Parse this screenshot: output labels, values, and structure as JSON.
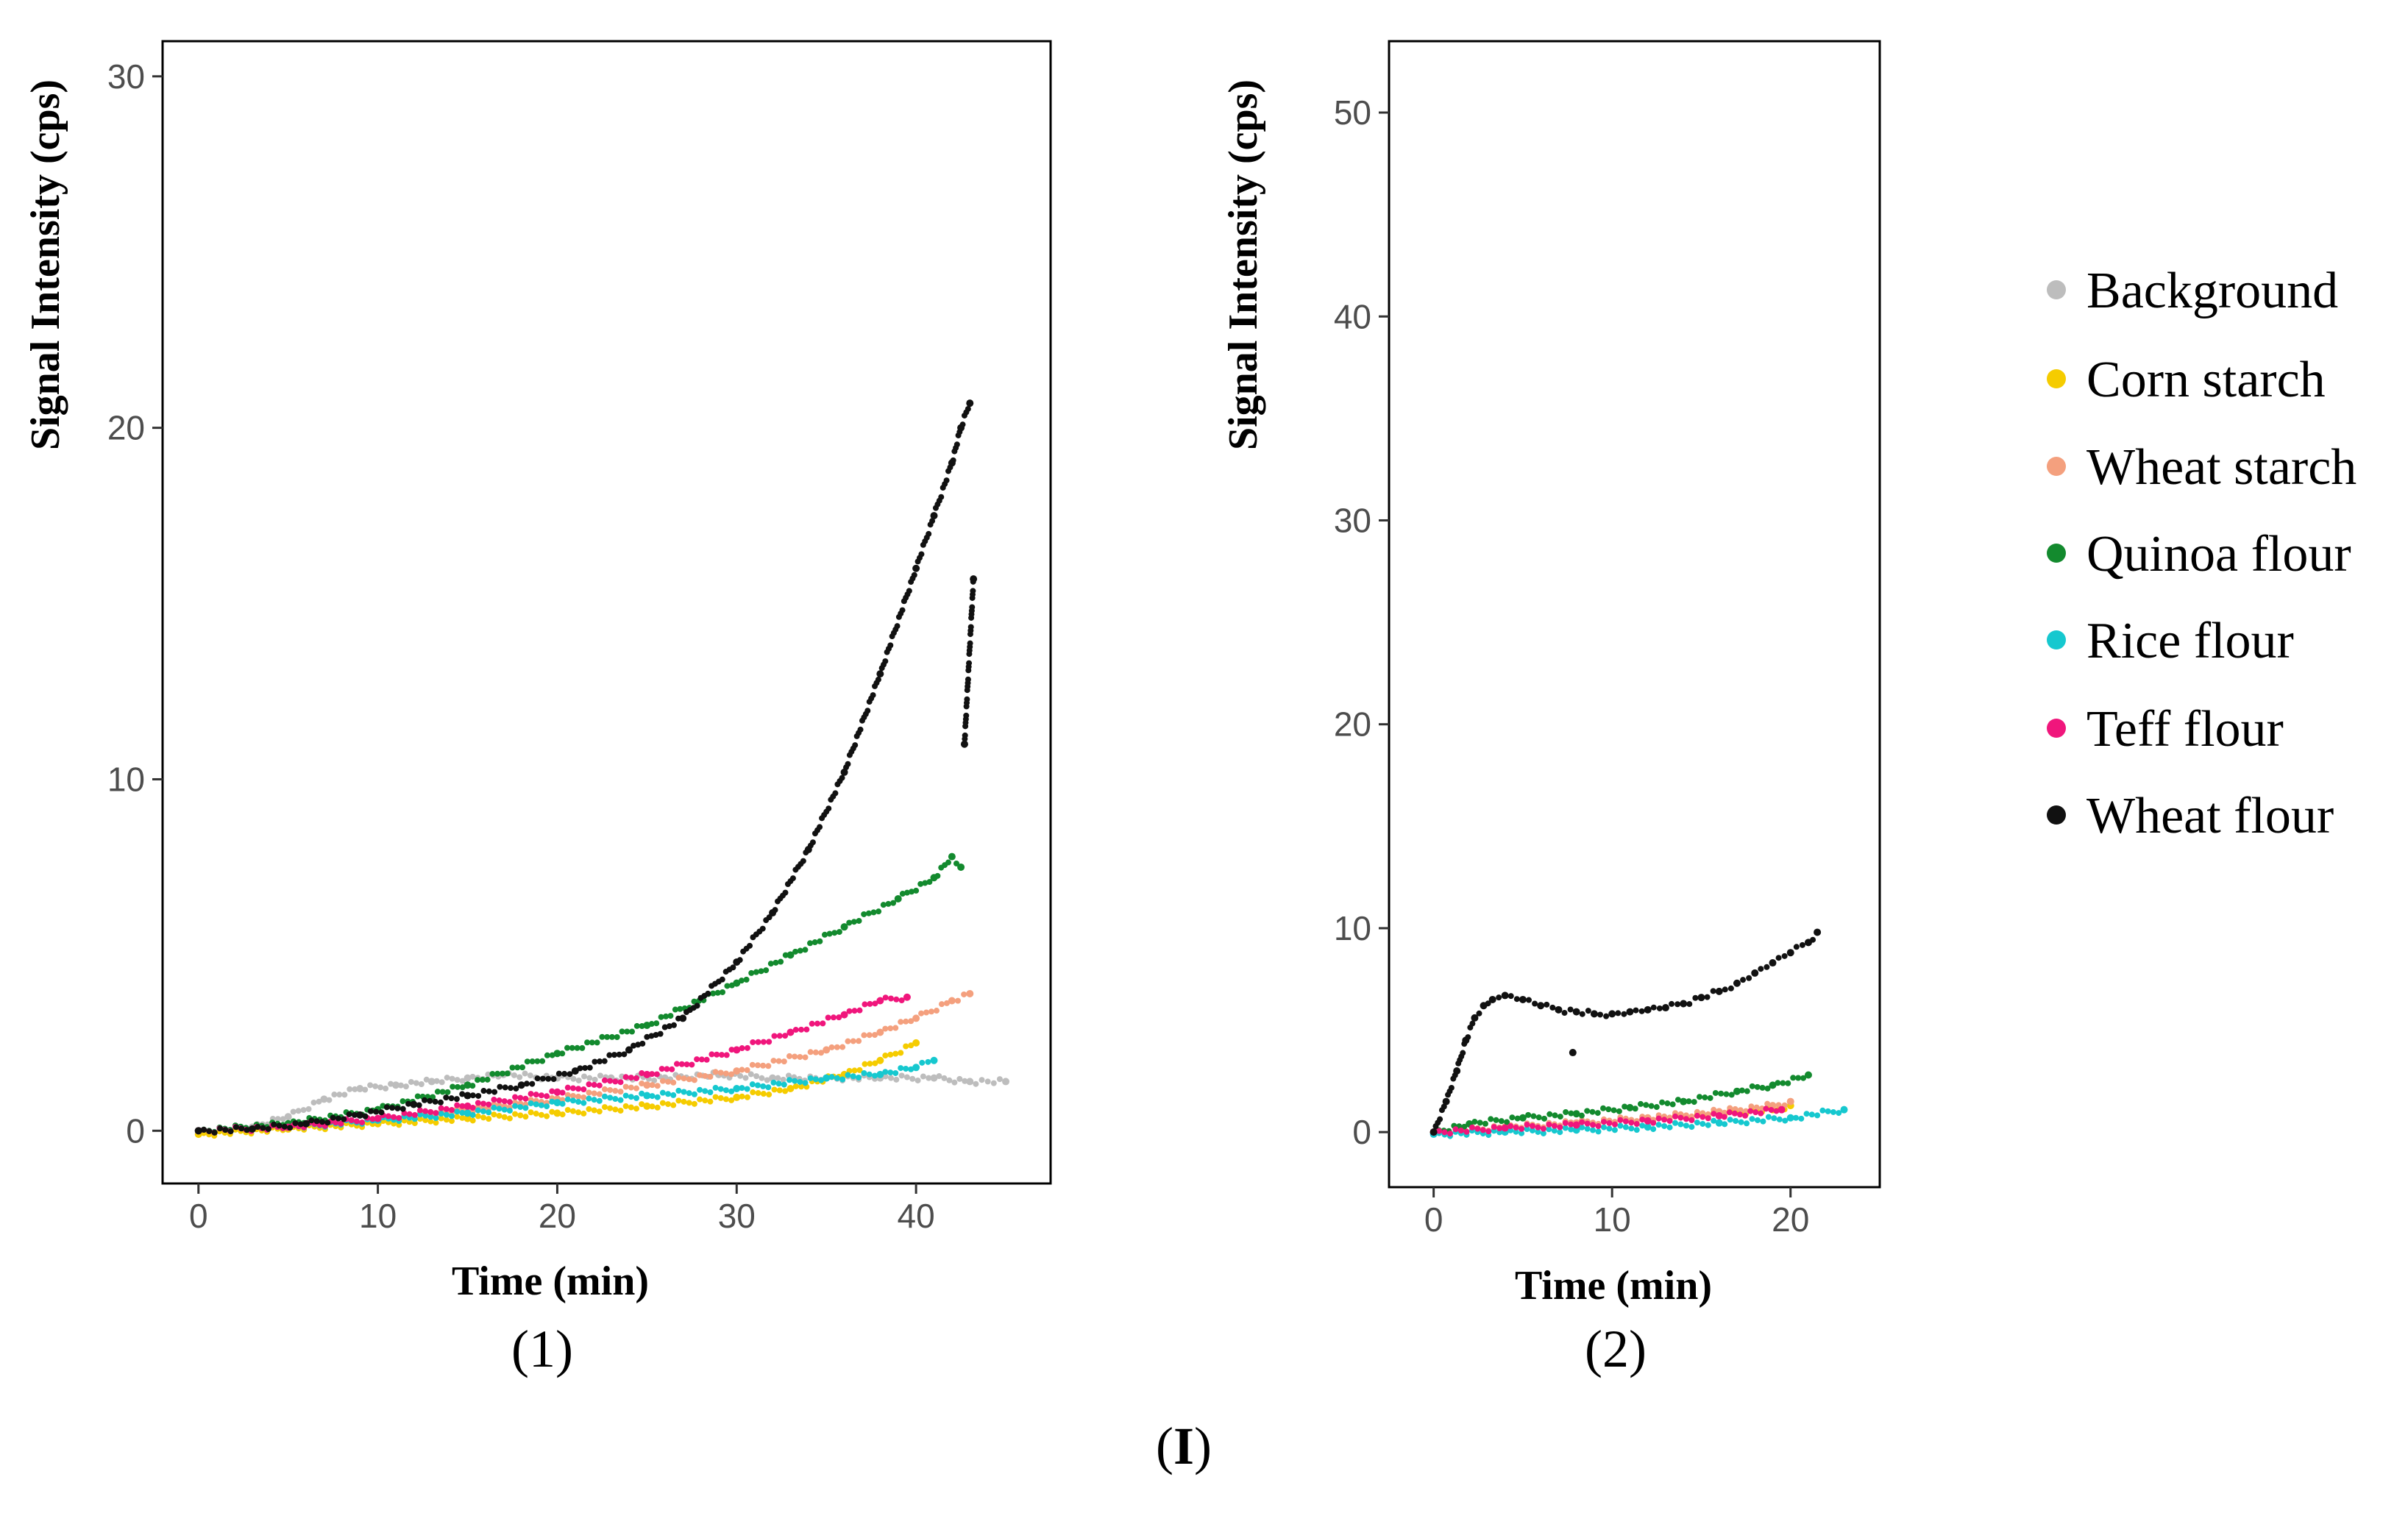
{
  "figure_label_prefix": "(",
  "figure_label_bold": "I",
  "figure_label_suffix": ")",
  "legend": [
    {
      "name": "Background",
      "color": "#bdbdbd"
    },
    {
      "name": "Corn starch",
      "color": "#f5cc00"
    },
    {
      "name": "Wheat starch",
      "color": "#f4a07e"
    },
    {
      "name": "Quinoa flour",
      "color": "#138a2e"
    },
    {
      "name": "Rice flour",
      "color": "#16c8cf"
    },
    {
      "name": "Teff flour",
      "color": "#f0167c"
    },
    {
      "name": "Wheat flour",
      "color": "#111111"
    }
  ],
  "chart_data": [
    {
      "type": "scatter",
      "caption": "(1)",
      "xlabel": "Time (min)",
      "ylabel": "Signal Intensity (cps)",
      "xlim": [
        -2,
        47.5
      ],
      "ylim": [
        -1.5,
        31
      ],
      "xticks": [
        0,
        10,
        20,
        30,
        40
      ],
      "yticks": [
        0,
        10,
        20,
        30
      ],
      "grid": false,
      "series": [
        {
          "name": "Background",
          "x": [
            0,
            3,
            5,
            7,
            9,
            11,
            13,
            15,
            17,
            20,
            23,
            26,
            29,
            32,
            35,
            38,
            41,
            43,
            45
          ],
          "y": [
            0,
            0.1,
            0.4,
            0.9,
            1.2,
            1.3,
            1.4,
            1.5,
            1.6,
            1.5,
            1.5,
            1.5,
            1.6,
            1.5,
            1.5,
            1.5,
            1.5,
            1.4,
            1.4
          ]
        },
        {
          "name": "Corn starch",
          "x": [
            0,
            5,
            10,
            15,
            20,
            25,
            30,
            33,
            36,
            38,
            40
          ],
          "y": [
            -0.1,
            0.05,
            0.2,
            0.35,
            0.5,
            0.7,
            0.95,
            1.2,
            1.6,
            2.0,
            2.5
          ]
        },
        {
          "name": "Wheat starch",
          "x": [
            0,
            5,
            10,
            15,
            20,
            25,
            30,
            35,
            38,
            40,
            42,
            43
          ],
          "y": [
            0,
            0.1,
            0.3,
            0.6,
            0.9,
            1.3,
            1.7,
            2.3,
            2.8,
            3.2,
            3.7,
            3.9
          ]
        },
        {
          "name": "Quinoa flour",
          "x": [
            0,
            5,
            10,
            15,
            20,
            25,
            30,
            33,
            36,
            39,
            41,
            42,
            42.5
          ],
          "y": [
            0,
            0.2,
            0.6,
            1.3,
            2.2,
            3.0,
            4.2,
            5.0,
            5.8,
            6.6,
            7.2,
            7.8,
            7.5
          ]
        },
        {
          "name": "Rice flour",
          "x": [
            0,
            5,
            10,
            15,
            20,
            25,
            30,
            35,
            38,
            40,
            41
          ],
          "y": [
            0,
            0.1,
            0.3,
            0.5,
            0.8,
            1.0,
            1.2,
            1.5,
            1.6,
            1.8,
            2.0
          ]
        },
        {
          "name": "Teff flour",
          "x": [
            0,
            5,
            10,
            15,
            20,
            25,
            30,
            33,
            36,
            38,
            39.5
          ],
          "y": [
            0,
            0.1,
            0.35,
            0.7,
            1.1,
            1.6,
            2.3,
            2.8,
            3.3,
            3.7,
            3.8
          ]
        },
        {
          "name": "Wheat flour",
          "x": [
            0,
            3,
            6,
            9,
            12,
            15,
            18,
            21,
            24,
            27,
            30,
            32,
            34,
            36,
            38,
            40,
            41,
            42,
            42.5,
            43,
            42.7,
            43.2
          ],
          "y": [
            0,
            0.05,
            0.2,
            0.45,
            0.75,
            1.0,
            1.3,
            1.7,
            2.3,
            3.2,
            4.8,
            6.2,
            8.0,
            10.2,
            13.0,
            16.0,
            17.5,
            19.0,
            20.0,
            20.7,
            11.0,
            15.7
          ]
        }
      ]
    },
    {
      "type": "scatter",
      "caption": "(2)",
      "xlabel": "Time (min)",
      "ylabel": "Signal Intensity (cps)",
      "xlim": [
        -2.5,
        25
      ],
      "ylim": [
        -2.7,
        53.5
      ],
      "xticks": [
        0,
        10,
        20
      ],
      "yticks": [
        0,
        10,
        20,
        30,
        40,
        50
      ],
      "grid": false,
      "series": [
        {
          "name": "Background",
          "x": [],
          "y": []
        },
        {
          "name": "Corn starch",
          "x": [
            0,
            4,
            8,
            12,
            16,
            19,
            20
          ],
          "y": [
            0,
            0.2,
            0.4,
            0.6,
            0.9,
            1.1,
            1.3
          ]
        },
        {
          "name": "Wheat starch",
          "x": [
            0,
            4,
            8,
            12,
            16,
            19,
            20
          ],
          "y": [
            0,
            0.25,
            0.45,
            0.7,
            1.0,
            1.3,
            1.5
          ]
        },
        {
          "name": "Quinoa flour",
          "x": [
            0,
            2,
            5,
            8,
            11,
            14,
            17,
            19,
            21
          ],
          "y": [
            0,
            0.4,
            0.7,
            0.9,
            1.2,
            1.5,
            2.0,
            2.3,
            2.8
          ]
        },
        {
          "name": "Rice flour",
          "x": [
            0,
            4,
            8,
            12,
            16,
            20,
            23
          ],
          "y": [
            -0.1,
            0,
            0.1,
            0.25,
            0.45,
            0.7,
            1.1
          ]
        },
        {
          "name": "Teff flour",
          "x": [
            0,
            4,
            8,
            12,
            16,
            19.5
          ],
          "y": [
            0,
            0.2,
            0.35,
            0.55,
            0.8,
            1.1
          ]
        },
        {
          "name": "Wheat flour",
          "x": [
            0,
            0.7,
            1.3,
            1.8,
            2.3,
            2.8,
            3.3,
            4,
            5,
            6,
            7,
            8,
            9,
            10,
            11,
            12,
            13,
            14,
            15,
            16,
            17,
            18,
            19,
            20,
            21,
            21.5,
            7.8
          ],
          "y": [
            0,
            1.5,
            3.0,
            4.5,
            5.6,
            6.2,
            6.5,
            6.7,
            6.5,
            6.2,
            6.0,
            5.9,
            5.8,
            5.8,
            5.9,
            6.0,
            6.1,
            6.3,
            6.6,
            6.9,
            7.3,
            7.8,
            8.3,
            8.8,
            9.3,
            9.8,
            3.9
          ]
        }
      ]
    }
  ]
}
